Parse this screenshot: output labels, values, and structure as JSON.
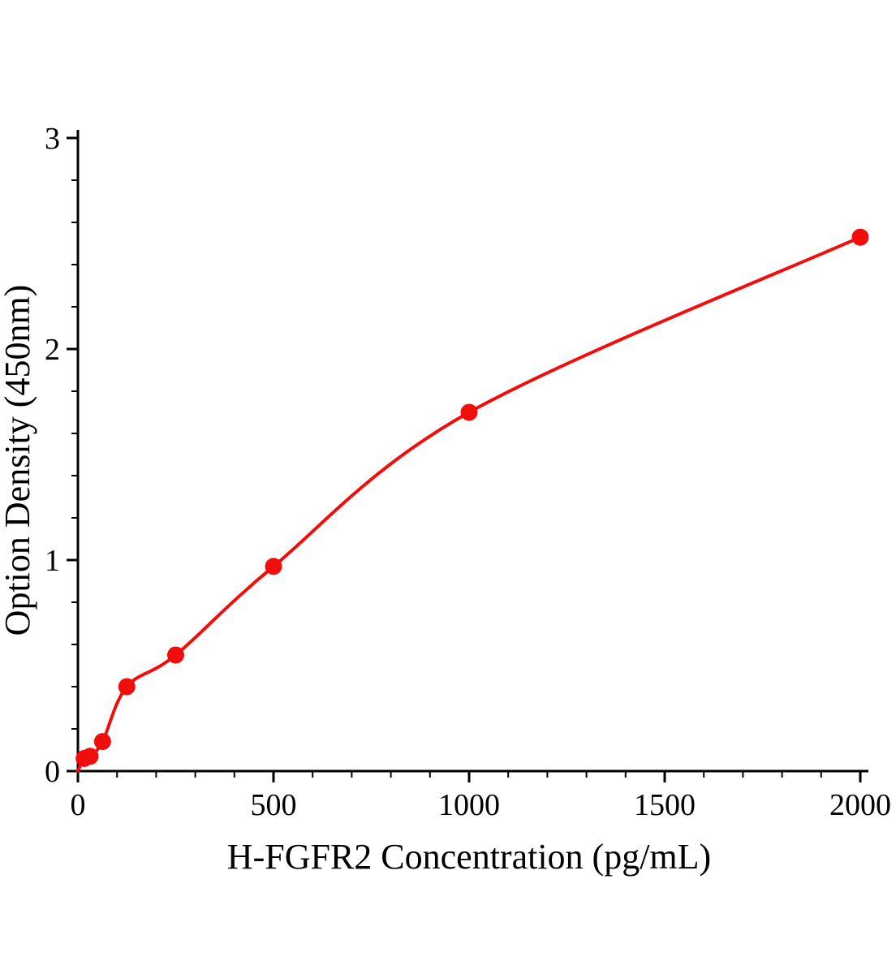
{
  "chart_data": {
    "type": "scatter",
    "title": "",
    "xlabel": "H-FGFR2 Concentration (pg/mL)",
    "ylabel": "Option Density (450nm)",
    "x": [
      16,
      31,
      63,
      125,
      250,
      500,
      1000,
      2000
    ],
    "y": [
      0.06,
      0.07,
      0.14,
      0.4,
      0.55,
      0.97,
      1.7,
      2.53
    ],
    "has_fit_curve": true,
    "curve_anchor": {
      "x": 0,
      "y": 0
    },
    "xlim": [
      0,
      2000
    ],
    "ylim": [
      0,
      3
    ],
    "x_major_ticks": [
      0,
      500,
      1000,
      1500,
      2000
    ],
    "y_major_ticks": [
      0,
      1,
      2,
      3
    ],
    "x_minor_step": 100,
    "y_minor_step": 0.2,
    "grid": false,
    "legend": null,
    "point_color": "#f20d0d",
    "line_color": "#f20d0d",
    "axis_color": "#000000",
    "background": "#ffffff"
  }
}
